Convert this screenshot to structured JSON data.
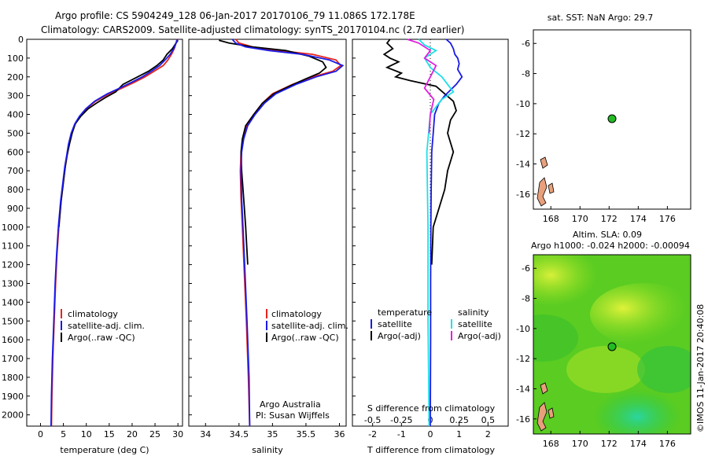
{
  "header": {
    "line1": "Argo profile: CS 5904249_128 06-Jan-2017 20170106_79 11.086S 172.178E",
    "line2": "Climatology: CARS2009. Satellite-adjusted climatology: synTS_20170104.nc (2.7d earlier)"
  },
  "colors": {
    "climatology": "#e8231c",
    "satellite": "#1a1ae6",
    "argo": "#000000",
    "sat_diff_T": "#1a1ae6",
    "sat_diff_S": "#1ee0e8",
    "argo_diff_S": "#e020e0",
    "buoy": "#22bb22",
    "land": "#e8a07c"
  },
  "y_axis": {
    "ticks": [
      0,
      100,
      200,
      300,
      400,
      500,
      600,
      700,
      800,
      900,
      1000,
      1100,
      1200,
      1300,
      1400,
      1500,
      1600,
      1700,
      1800,
      1900,
      2000
    ]
  },
  "temp_panel": {
    "xlabel": "temperature (deg C)",
    "xticks": [
      "0",
      "5",
      "10",
      "15",
      "20",
      "25",
      "30"
    ],
    "legend": [
      "climatology",
      "satellite-adj. clim.",
      "Argo(..raw -QC)"
    ]
  },
  "sal_panel": {
    "xlabel": "salinity",
    "xticks": [
      "34",
      "34.5",
      "35",
      "35.5",
      "36"
    ],
    "legend": [
      "climatology",
      "satellite-adj. clim.",
      "Argo(..raw -QC)"
    ],
    "credit1": "Argo Australia",
    "credit2": "PI: Susan Wijffels"
  },
  "diff_panel": {
    "top_label": "S difference from climatology",
    "top_ticks": [
      "-0.5",
      "-0.25",
      "0",
      "0.25",
      "0.5"
    ],
    "xlabel": "T difference from climatology",
    "xticks": [
      "-2",
      "-1",
      "0",
      "1",
      "2"
    ],
    "legend_temp_title": "temperature",
    "legend_sal_title": "salinity",
    "legend_temp": [
      "satellite",
      "Argo(-adj)"
    ],
    "legend_sal": [
      "satellite",
      "Argo(-adj)"
    ]
  },
  "map_sst": {
    "title": "sat. SST: NaN Argo: 29.7",
    "yticks": [
      "-6",
      "-8",
      "-10",
      "-12",
      "-14",
      "-16"
    ],
    "xticks": [
      "168",
      "170",
      "172",
      "174",
      "176"
    ]
  },
  "map_sla": {
    "title1": "Altim. SLA: 0.09",
    "title2": "Argo h1000: -0.024 h2000: -0.00094",
    "yticks": [
      "-6",
      "-8",
      "-10",
      "-12",
      "-14",
      "-16"
    ],
    "xticks": [
      "168",
      "170",
      "172",
      "174",
      "176"
    ]
  },
  "side_credit": "©IMOS 11-Jan-2017 20:40:08",
  "chart_data": [
    {
      "type": "line",
      "panel": "temperature",
      "xlabel": "temperature (deg C)",
      "ylabel": "",
      "xlim": [
        -3,
        31
      ],
      "ylim": [
        2060,
        0
      ],
      "series": [
        {
          "name": "climatology",
          "x": [
            29.8,
            29.6,
            29.2,
            28.6,
            27.8,
            26.8,
            24.8,
            22.8,
            20.4,
            17.8,
            15.0,
            12.0,
            10.0,
            8.6,
            7.6,
            6.8,
            6.2,
            5.8,
            5.4,
            5.0,
            4.5,
            4.0,
            3.6,
            3.3,
            3.0,
            2.7,
            2.5,
            2.4
          ],
          "y": [
            0,
            20,
            50,
            80,
            110,
            140,
            170,
            200,
            230,
            260,
            290,
            330,
            370,
            410,
            450,
            500,
            560,
            620,
            680,
            760,
            860,
            1000,
            1150,
            1300,
            1500,
            1700,
            1900,
            2060
          ]
        },
        {
          "name": "satellite-adj. clim.",
          "x": [
            29.9,
            29.6,
            29.1,
            28.3,
            27.2,
            26.0,
            24.2,
            22.2,
            19.8,
            17.3,
            14.6,
            11.8,
            9.9,
            8.5,
            7.5,
            6.7,
            6.1,
            5.7,
            5.3,
            4.9,
            4.4,
            3.9,
            3.5,
            3.2,
            2.9,
            2.6,
            2.4,
            2.3
          ],
          "y": [
            0,
            20,
            50,
            80,
            110,
            140,
            170,
            200,
            230,
            260,
            290,
            330,
            370,
            410,
            450,
            500,
            560,
            620,
            680,
            760,
            860,
            1000,
            1150,
            1300,
            1500,
            1700,
            1900,
            2060
          ]
        },
        {
          "name": "Argo(..raw -QC)",
          "x": [
            30.0,
            29.6,
            28.8,
            27.6,
            26.8,
            25.4,
            23.6,
            21.2,
            18.0,
            16.4,
            14.2,
            12.2,
            10.4,
            8.8,
            7.6,
            6.9,
            6.3,
            5.8,
            5.4,
            5.0,
            4.5,
            4.0
          ],
          "y": [
            5,
            20,
            50,
            80,
            110,
            140,
            170,
            200,
            240,
            280,
            310,
            340,
            370,
            410,
            450,
            500,
            560,
            620,
            680,
            760,
            860,
            1000
          ]
        }
      ]
    },
    {
      "type": "line",
      "panel": "salinity",
      "xlabel": "salinity",
      "ylabel": "",
      "xlim": [
        33.75,
        36.1
      ],
      "ylim": [
        2060,
        0
      ],
      "series": [
        {
          "name": "climatology",
          "x": [
            34.45,
            34.5,
            34.7,
            35.1,
            35.6,
            35.95,
            36.02,
            35.9,
            35.6,
            35.3,
            35.0,
            34.85,
            34.72,
            34.62,
            34.56,
            34.53,
            34.52,
            34.53,
            34.55,
            34.58,
            34.61,
            34.64,
            34.66
          ],
          "y": [
            0,
            20,
            40,
            60,
            80,
            110,
            140,
            170,
            200,
            240,
            290,
            340,
            400,
            460,
            530,
            600,
            700,
            850,
            1000,
            1250,
            1500,
            1800,
            2060
          ]
        },
        {
          "name": "satellite-adj. clim.",
          "x": [
            34.4,
            34.45,
            34.6,
            34.95,
            35.45,
            35.85,
            36.05,
            35.95,
            35.65,
            35.35,
            35.05,
            34.88,
            34.74,
            34.63,
            34.57,
            34.54,
            34.53,
            34.54,
            34.56,
            34.59,
            34.62,
            34.65,
            34.66
          ],
          "y": [
            0,
            20,
            40,
            60,
            80,
            110,
            140,
            170,
            200,
            240,
            290,
            340,
            400,
            460,
            530,
            600,
            700,
            850,
            1000,
            1250,
            1500,
            1800,
            2060
          ]
        },
        {
          "name": "Argo(..raw -QC)",
          "x": [
            34.2,
            34.35,
            34.7,
            35.2,
            35.55,
            35.75,
            35.8,
            35.7,
            35.5,
            35.25,
            35.02,
            34.85,
            34.72,
            34.6,
            34.55,
            34.53,
            34.54,
            34.57,
            34.6,
            34.63
          ],
          "y": [
            5,
            20,
            40,
            60,
            90,
            120,
            150,
            180,
            210,
            250,
            290,
            340,
            400,
            460,
            530,
            600,
            700,
            850,
            1000,
            1200
          ]
        }
      ]
    },
    {
      "type": "line",
      "panel": "difference",
      "xlabel": "T difference from climatology",
      "x2label": "S difference from climatology",
      "xlim": [
        -2.7,
        2.7
      ],
      "ylim": [
        2060,
        0
      ],
      "series": [
        {
          "name": "satellite (temperature)",
          "x": [
            0.55,
            0.7,
            0.8,
            0.85,
            0.95,
            1.0,
            0.95,
            1.1,
            0.9,
            0.7,
            0.5,
            0.3,
            0.15,
            0.1,
            0.05,
            0.03,
            0.02,
            0.01,
            0.01,
            0.0
          ],
          "y": [
            0,
            20,
            50,
            80,
            100,
            130,
            160,
            200,
            240,
            270,
            300,
            340,
            400,
            500,
            600,
            800,
            1000,
            1300,
            1600,
            2060
          ]
        },
        {
          "name": "Argo(-adj) (temperature)",
          "x": [
            -1.4,
            -1.5,
            -1.3,
            -1.6,
            -1.4,
            -1.1,
            -1.5,
            -1.0,
            -1.2,
            -0.7,
            0.2,
            0.5,
            0.8,
            0.9,
            0.7,
            0.6,
            0.8,
            0.6,
            0.5,
            0.3,
            0.1,
            0.05
          ],
          "y": [
            0,
            20,
            50,
            80,
            100,
            120,
            150,
            180,
            200,
            220,
            250,
            290,
            330,
            380,
            430,
            500,
            600,
            700,
            800,
            900,
            1000,
            1200
          ]
        },
        {
          "name": "satellite (salinity)",
          "x": [
            -0.1,
            -0.05,
            0.05,
            -0.05,
            0.0,
            0.1,
            0.15,
            0.2,
            0.1,
            0.0,
            -0.03,
            -0.02,
            -0.02,
            -0.01
          ],
          "y": [
            0,
            30,
            60,
            100,
            150,
            200,
            240,
            280,
            320,
            400,
            600,
            1000,
            1500,
            2060
          ]
        },
        {
          "name": "Argo(-adj) (salinity)",
          "x": [
            -0.2,
            -0.1,
            0.0,
            -0.05,
            0.05,
            0.0,
            -0.05,
            0.03,
            0.0,
            -0.01
          ],
          "y": [
            0,
            20,
            60,
            100,
            140,
            200,
            260,
            320,
            400,
            500
          ]
        }
      ]
    }
  ]
}
